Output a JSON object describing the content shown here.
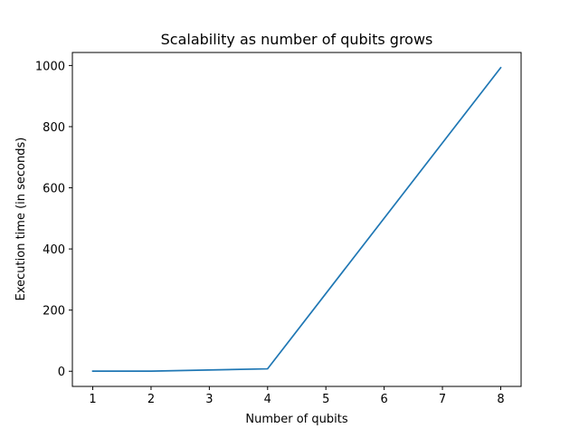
{
  "chart_data": {
    "type": "line",
    "title": "Scalability as number of qubits grows",
    "xlabel": "Number of qubits",
    "ylabel": "Execution time (in seconds)",
    "x": [
      1,
      2,
      4,
      8
    ],
    "series": [
      {
        "values": [
          0.3,
          0.4,
          8,
          993
        ],
        "color": "#1f77b4"
      }
    ],
    "xlim": [
      0.65,
      8.35
    ],
    "ylim": [
      -49.6,
      1042.6
    ],
    "xticks": [
      1,
      2,
      3,
      4,
      5,
      6,
      7,
      8
    ],
    "yticks": [
      0,
      200,
      400,
      600,
      800,
      1000
    ],
    "grid": false,
    "legend": "none"
  }
}
